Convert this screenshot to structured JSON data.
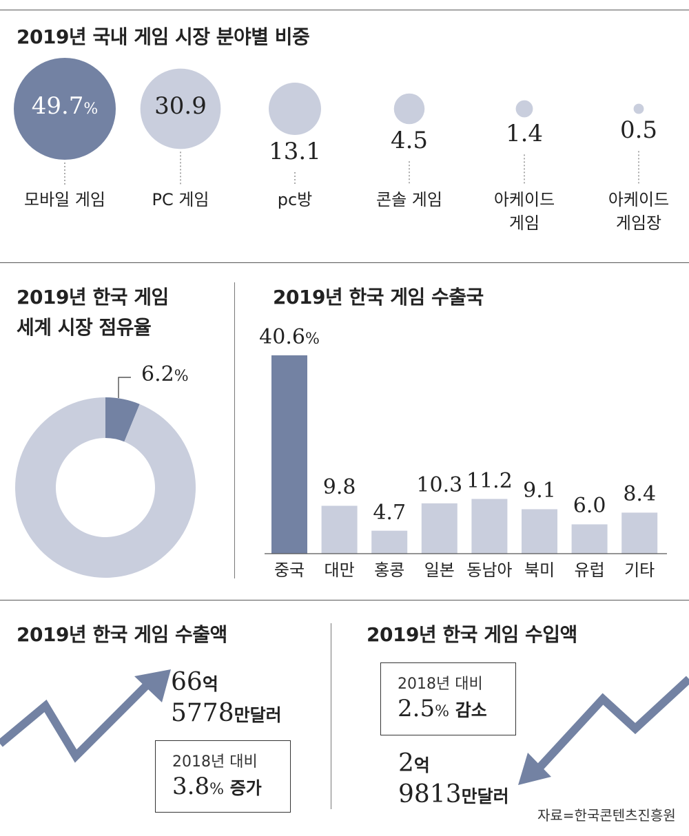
{
  "colors": {
    "dark": "#7382a3",
    "light": "#c9cedd",
    "line": "#555555"
  },
  "sections": {
    "share": {
      "title": "2019년 국내 게임 시장 분야별 비중"
    },
    "world": {
      "title_line1": "2019년 한국 게임",
      "title_line2": "세계 시장 점유율"
    },
    "export_countries": {
      "title": "2019년 한국 게임 수출국"
    },
    "export_amount": {
      "title": "2019년 한국 게임 수출액",
      "amount_line1_num": "66",
      "amount_line1_unit": "억",
      "amount_line2_num": "5778",
      "amount_line2_unit": "만달러",
      "compare_label": "2018년 대비",
      "compare_num": "3.8",
      "compare_pct": "%",
      "compare_word": " 증가"
    },
    "import_amount": {
      "title": "2019년 한국 게임 수입액",
      "compare_label": "2018년 대비",
      "compare_num": "2.5",
      "compare_pct": "%",
      "compare_word": " 감소",
      "amount_line1_num": "2",
      "amount_line1_unit": "억",
      "amount_line2_num": "9813",
      "amount_line2_unit": "만달러"
    },
    "source": "자료=한국콘텐츠진흥원"
  },
  "chart_data": [
    {
      "type": "bubble",
      "title": "2019년 국내 게임 시장 분야별 비중",
      "unit": "%",
      "categories": [
        "모바일 게임",
        "PC 게임",
        "pc방",
        "콘솔 게임",
        "아케이드 게임",
        "아케이드 게임장"
      ],
      "label_lines": [
        [
          "모바일 게임"
        ],
        [
          "PC 게임"
        ],
        [
          "pc방"
        ],
        [
          "콘솔 게임"
        ],
        [
          "아케이드",
          "게임"
        ],
        [
          "아케이드",
          "게임장"
        ]
      ],
      "values": [
        49.7,
        30.9,
        13.1,
        4.5,
        1.4,
        0.5
      ],
      "value_labels": [
        "49.7",
        "30.9",
        "13.1",
        "4.5",
        "1.4",
        "0.5"
      ],
      "first_suffix": "%"
    },
    {
      "type": "pie",
      "title": "2019년 한국 게임 세계 시장 점유율",
      "values": [
        6.2,
        93.8
      ],
      "highlight_label_num": "6.2",
      "highlight_label_pct": "%"
    },
    {
      "type": "bar",
      "title": "2019년 한국 게임 수출국",
      "unit": "%",
      "categories": [
        "중국",
        "대만",
        "홍콩",
        "일본",
        "동남아",
        "북미",
        "유럽",
        "기타"
      ],
      "values": [
        40.6,
        9.8,
        4.7,
        10.3,
        11.2,
        9.1,
        6.0,
        8.4
      ],
      "value_labels": [
        "40.6",
        "9.8",
        "4.7",
        "10.3",
        "11.2",
        "9.1",
        "6.0",
        "8.4"
      ],
      "first_suffix": "%"
    }
  ]
}
